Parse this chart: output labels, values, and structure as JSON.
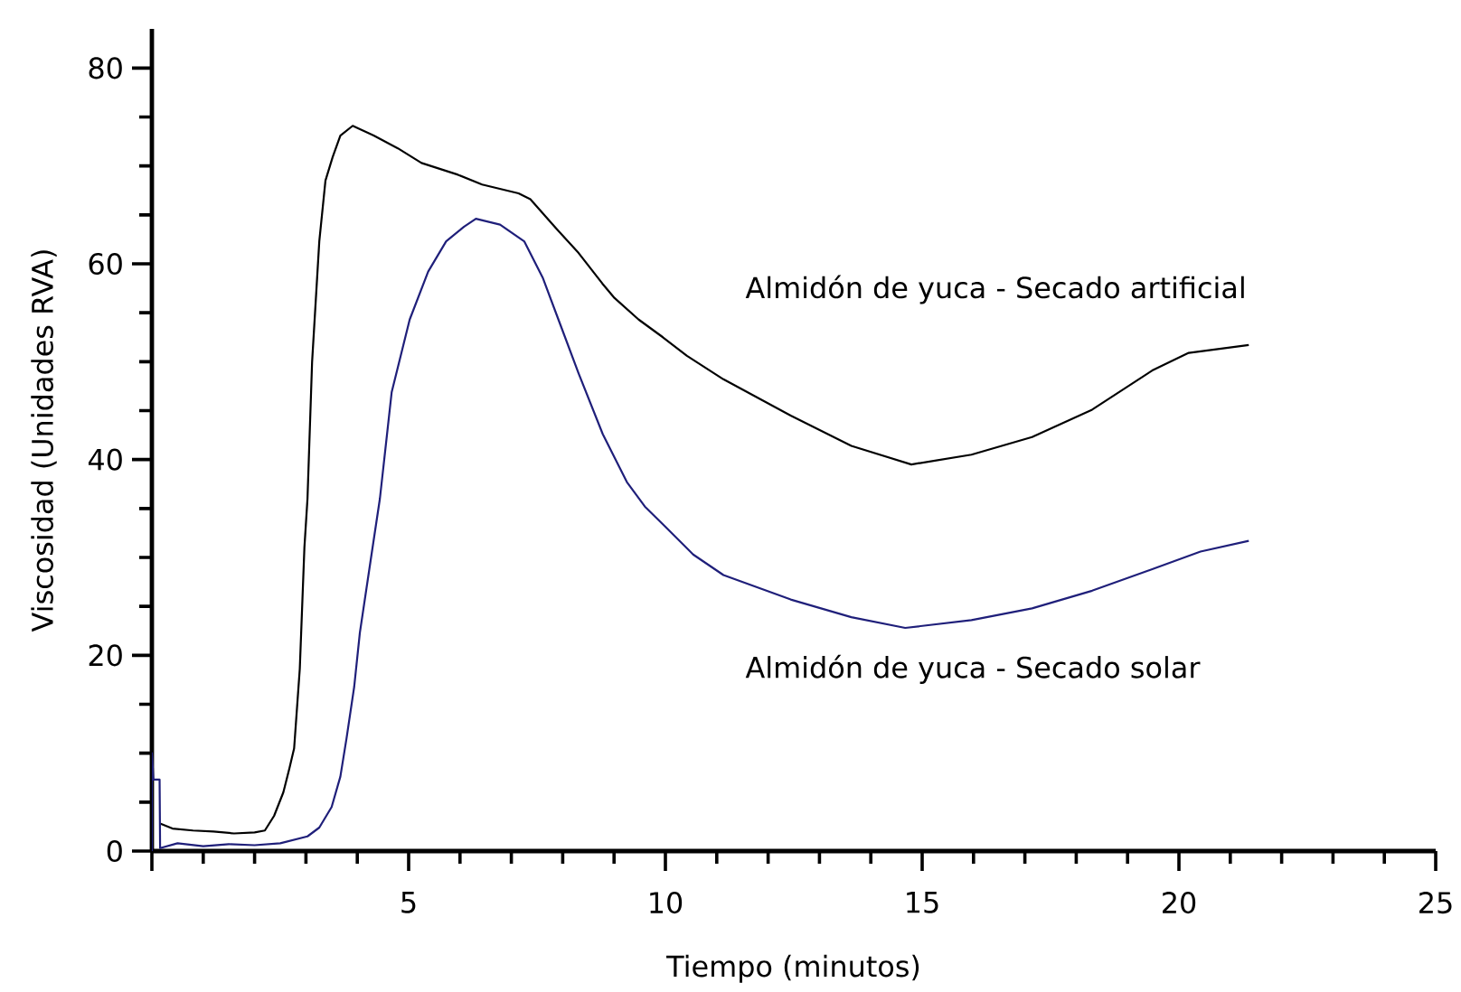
{
  "chart_data": {
    "type": "line",
    "xlabel": "Tiempo (minutos)",
    "ylabel": "Viscosidad (Unidades RVA)",
    "xlim": [
      0,
      25
    ],
    "ylim": [
      0,
      84
    ],
    "xticks": [
      {
        "value": 0,
        "label": null
      },
      5,
      10,
      15,
      20,
      25
    ],
    "yticks": [
      0,
      20,
      40,
      60,
      80
    ],
    "series": [
      {
        "name": "Almidón de yuca - Secado artificial",
        "color": "#000000",
        "x": [
          0.17,
          0.4,
          0.8,
          1.2,
          1.6,
          2.0,
          2.2,
          2.38,
          2.56,
          2.68,
          2.77,
          2.88,
          2.97,
          3.03,
          3.12,
          3.26,
          3.38,
          3.52,
          3.67,
          3.91,
          4.32,
          4.79,
          5.25,
          5.96,
          6.43,
          7.14,
          7.37,
          7.84,
          8.31,
          8.77,
          9.01,
          9.48,
          9.95,
          10.42,
          11.13,
          12.44,
          13.62,
          14.79,
          15.96,
          17.14,
          18.31,
          19.48,
          20.19,
          21.36
        ],
        "values": [
          2.8,
          2.3,
          2.1,
          2.0,
          1.8,
          1.9,
          2.1,
          3.6,
          6.0,
          8.5,
          10.5,
          18.6,
          31,
          36,
          50,
          62.3,
          68.5,
          70.9,
          73.1,
          74.1,
          73.1,
          71.8,
          70.3,
          69.1,
          68.1,
          67.2,
          66.6,
          63.8,
          61.1,
          58.0,
          56.5,
          54.3,
          52.5,
          50.6,
          48.2,
          44.5,
          41.4,
          39.5,
          40.5,
          42.3,
          45.1,
          49.1,
          50.9,
          51.7
        ]
      },
      {
        "name": "Almidón de yuca - Secado solar",
        "color": "#1f1f7a",
        "x": [
          0,
          0,
          0.03,
          0.15,
          0.16,
          0.5,
          1.0,
          1.5,
          2.0,
          2.5,
          3.03,
          3.26,
          3.5,
          3.67,
          3.79,
          3.94,
          4.05,
          4.26,
          4.44,
          4.67,
          5.02,
          5.38,
          5.73,
          6.08,
          6.31,
          6.78,
          7.25,
          7.61,
          7.96,
          8.31,
          8.78,
          9.25,
          9.6,
          9.95,
          10.54,
          11.13,
          12.44,
          13.62,
          14.67,
          15.96,
          17.14,
          18.31,
          19.48,
          20.42,
          21.36
        ],
        "values": [
          0,
          10,
          7.3,
          7.3,
          0.3,
          0.8,
          0.5,
          0.7,
          0.6,
          0.8,
          1.5,
          2.4,
          4.5,
          7.6,
          11.5,
          16.8,
          22.3,
          29.7,
          36,
          46.9,
          54.3,
          59.2,
          62.3,
          63.8,
          64.6,
          64.0,
          62.3,
          58.6,
          53.7,
          48.8,
          42.6,
          37.7,
          35.2,
          33.4,
          30.3,
          28.2,
          25.7,
          23.9,
          22.8,
          23.6,
          24.8,
          26.6,
          28.8,
          30.6,
          31.7
        ]
      }
    ]
  }
}
